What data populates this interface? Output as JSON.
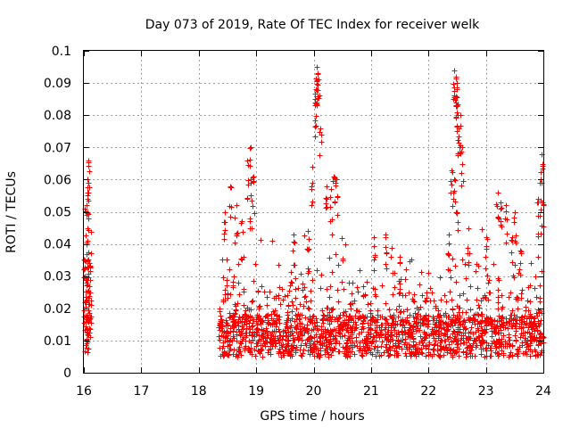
{
  "chart_data": {
    "type": "scatter",
    "title": "Day 073 of 2019, Rate Of TEC Index for receiver welk",
    "xlabel": "GPS time / hours",
    "ylabel": "ROTI / TECUs",
    "xlim": [
      16,
      24
    ],
    "ylim": [
      0,
      0.1
    ],
    "x_ticks": [
      "16",
      "17",
      "18",
      "19",
      "20",
      "21",
      "22",
      "23",
      "24"
    ],
    "y_ticks": [
      "0",
      "0.01",
      "0.02",
      "0.03",
      "0.04",
      "0.05",
      "0.06",
      "0.07",
      "0.08",
      "0.09",
      "0.1"
    ],
    "grid": true,
    "marker": "+",
    "color": "#ff0000",
    "series": [
      {
        "name": "ROTI",
        "clusters": [
          {
            "x_start": 16.0,
            "x_end": 16.12,
            "count": 90,
            "base_min": 0.006,
            "base_max": 0.035
          },
          {
            "x_start": 18.35,
            "x_end": 24.0,
            "count": 1900,
            "base_min": 0.005,
            "base_max": 0.018
          }
        ],
        "highlights": [
          {
            "x": 16.08,
            "y": 0.066
          },
          {
            "x": 16.07,
            "y": 0.059
          },
          {
            "x": 16.06,
            "y": 0.055
          },
          {
            "x": 16.05,
            "y": 0.052
          },
          {
            "x": 16.06,
            "y": 0.045
          },
          {
            "x": 16.04,
            "y": 0.04
          },
          {
            "x": 18.45,
            "y": 0.05
          },
          {
            "x": 18.55,
            "y": 0.058
          },
          {
            "x": 18.65,
            "y": 0.052
          },
          {
            "x": 18.75,
            "y": 0.047
          },
          {
            "x": 18.9,
            "y": 0.07
          },
          {
            "x": 18.85,
            "y": 0.066
          },
          {
            "x": 18.95,
            "y": 0.061
          },
          {
            "x": 18.9,
            "y": 0.055
          },
          {
            "x": 19.65,
            "y": 0.043
          },
          {
            "x": 19.9,
            "y": 0.044
          },
          {
            "x": 20.05,
            "y": 0.095
          },
          {
            "x": 20.07,
            "y": 0.093
          },
          {
            "x": 20.08,
            "y": 0.091
          },
          {
            "x": 20.04,
            "y": 0.088
          },
          {
            "x": 20.03,
            "y": 0.085
          },
          {
            "x": 20.12,
            "y": 0.076
          },
          {
            "x": 19.98,
            "y": 0.064
          },
          {
            "x": 20.22,
            "y": 0.058
          },
          {
            "x": 20.35,
            "y": 0.061
          },
          {
            "x": 20.3,
            "y": 0.057
          },
          {
            "x": 20.4,
            "y": 0.06
          },
          {
            "x": 21.05,
            "y": 0.042
          },
          {
            "x": 21.25,
            "y": 0.043
          },
          {
            "x": 21.5,
            "y": 0.036
          },
          {
            "x": 22.45,
            "y": 0.094
          },
          {
            "x": 22.47,
            "y": 0.092
          },
          {
            "x": 22.49,
            "y": 0.09
          },
          {
            "x": 22.5,
            "y": 0.088
          },
          {
            "x": 22.48,
            "y": 0.086
          },
          {
            "x": 22.55,
            "y": 0.08
          },
          {
            "x": 22.52,
            "y": 0.076
          },
          {
            "x": 22.58,
            "y": 0.07
          },
          {
            "x": 22.4,
            "y": 0.063
          },
          {
            "x": 22.45,
            "y": 0.06
          },
          {
            "x": 22.5,
            "y": 0.05
          },
          {
            "x": 22.35,
            "y": 0.043
          },
          {
            "x": 22.7,
            "y": 0.045
          },
          {
            "x": 23.0,
            "y": 0.042
          },
          {
            "x": 23.2,
            "y": 0.056
          },
          {
            "x": 23.25,
            "y": 0.053
          },
          {
            "x": 23.35,
            "y": 0.052
          },
          {
            "x": 23.5,
            "y": 0.05
          },
          {
            "x": 23.45,
            "y": 0.042
          },
          {
            "x": 23.6,
            "y": 0.038
          },
          {
            "x": 23.9,
            "y": 0.054
          },
          {
            "x": 23.97,
            "y": 0.068
          },
          {
            "x": 23.95,
            "y": 0.06
          },
          {
            "x": 23.98,
            "y": 0.053
          }
        ]
      }
    ]
  }
}
